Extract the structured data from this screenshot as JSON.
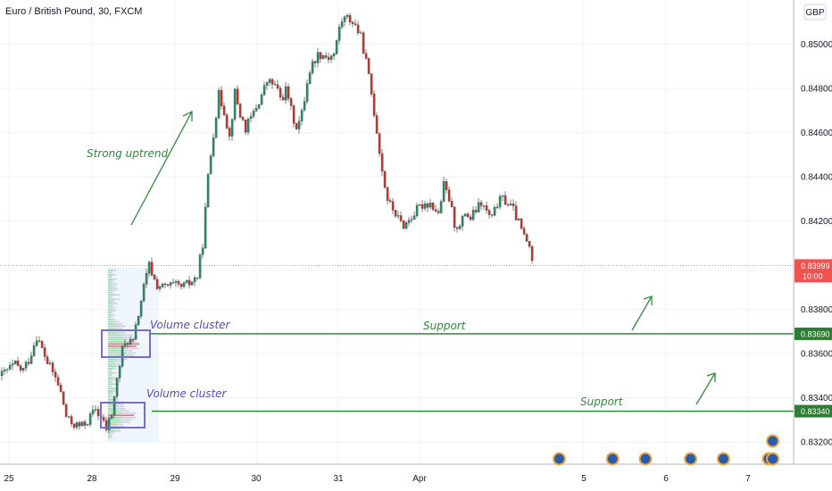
{
  "chart_data": {
    "type": "candlestick",
    "title": "Euro / British Pound, 30, FXCM",
    "currency": "GBP",
    "x_tick_labels": [
      "25",
      "28",
      "29",
      "30",
      "31",
      "Apr",
      "5",
      "6",
      "7"
    ],
    "y_tick_labels": [
      "0.85000",
      "0.84800",
      "0.84600",
      "0.84400",
      "0.84200",
      "0.83800",
      "0.83600",
      "0.83400",
      "0.83200"
    ],
    "ylim": [
      0.831,
      0.852
    ],
    "current_price": {
      "label": "0.83999",
      "countdown": "10:00",
      "value": 0.83999
    },
    "support_levels": [
      {
        "value": 0.8369,
        "label": "0.83690"
      },
      {
        "value": 0.8334,
        "label": "0.83340"
      }
    ],
    "annotations": {
      "uptrend": "Strong uptrend",
      "support_1": "Support",
      "support_2": "Support",
      "cluster_1": "Volume cluster",
      "cluster_2": "Volume cluster"
    },
    "price_path": [
      [
        0,
        0.835
      ],
      [
        8,
        0.8353
      ],
      [
        16,
        0.8355
      ],
      [
        24,
        0.8352
      ],
      [
        32,
        0.8358
      ],
      [
        40,
        0.8368
      ],
      [
        46,
        0.8362
      ],
      [
        52,
        0.8356
      ],
      [
        60,
        0.835
      ],
      [
        66,
        0.8344
      ],
      [
        74,
        0.833
      ],
      [
        82,
        0.8328
      ],
      [
        90,
        0.8327
      ],
      [
        98,
        0.833
      ],
      [
        106,
        0.8335
      ],
      [
        112,
        0.8331
      ],
      [
        118,
        0.8326
      ],
      [
        124,
        0.8333
      ],
      [
        130,
        0.8348
      ],
      [
        136,
        0.8362
      ],
      [
        142,
        0.8366
      ],
      [
        148,
        0.8365
      ],
      [
        154,
        0.8378
      ],
      [
        160,
        0.839
      ],
      [
        166,
        0.84
      ],
      [
        174,
        0.8391
      ],
      [
        182,
        0.839
      ],
      [
        192,
        0.8391
      ],
      [
        202,
        0.839
      ],
      [
        212,
        0.8392
      ],
      [
        220,
        0.8395
      ],
      [
        226,
        0.841
      ],
      [
        232,
        0.844
      ],
      [
        238,
        0.846
      ],
      [
        244,
        0.8477
      ],
      [
        250,
        0.847
      ],
      [
        256,
        0.8458
      ],
      [
        262,
        0.8478
      ],
      [
        268,
        0.8468
      ],
      [
        274,
        0.8462
      ],
      [
        282,
        0.8468
      ],
      [
        290,
        0.8475
      ],
      [
        298,
        0.8483
      ],
      [
        306,
        0.8482
      ],
      [
        314,
        0.8475
      ],
      [
        320,
        0.848
      ],
      [
        326,
        0.8468
      ],
      [
        332,
        0.8462
      ],
      [
        338,
        0.847
      ],
      [
        344,
        0.8486
      ],
      [
        350,
        0.8492
      ],
      [
        356,
        0.8496
      ],
      [
        362,
        0.8495
      ],
      [
        368,
        0.8494
      ],
      [
        374,
        0.8496
      ],
      [
        380,
        0.851
      ],
      [
        386,
        0.8512
      ],
      [
        392,
        0.8511
      ],
      [
        398,
        0.8508
      ],
      [
        404,
        0.8502
      ],
      [
        410,
        0.849
      ],
      [
        416,
        0.8475
      ],
      [
        422,
        0.8458
      ],
      [
        428,
        0.844
      ],
      [
        434,
        0.8428
      ],
      [
        440,
        0.8425
      ],
      [
        446,
        0.842
      ],
      [
        452,
        0.8418
      ],
      [
        458,
        0.8421
      ],
      [
        466,
        0.8425
      ],
      [
        474,
        0.8428
      ],
      [
        482,
        0.8428
      ],
      [
        490,
        0.8423
      ],
      [
        496,
        0.8436
      ],
      [
        502,
        0.843
      ],
      [
        508,
        0.8419
      ],
      [
        514,
        0.8417
      ],
      [
        520,
        0.8424
      ],
      [
        526,
        0.8421
      ],
      [
        532,
        0.8425
      ],
      [
        538,
        0.8428
      ],
      [
        544,
        0.8424
      ],
      [
        550,
        0.8421
      ],
      [
        556,
        0.8428
      ],
      [
        562,
        0.843
      ],
      [
        568,
        0.8428
      ],
      [
        574,
        0.8425
      ],
      [
        580,
        0.8419
      ],
      [
        586,
        0.8413
      ],
      [
        592,
        0.8408
      ],
      [
        597,
        0.84
      ]
    ],
    "event_markers": [
      4.7,
      5.35,
      5.75,
      6.3,
      6.7,
      7.25,
      7.3
    ]
  }
}
